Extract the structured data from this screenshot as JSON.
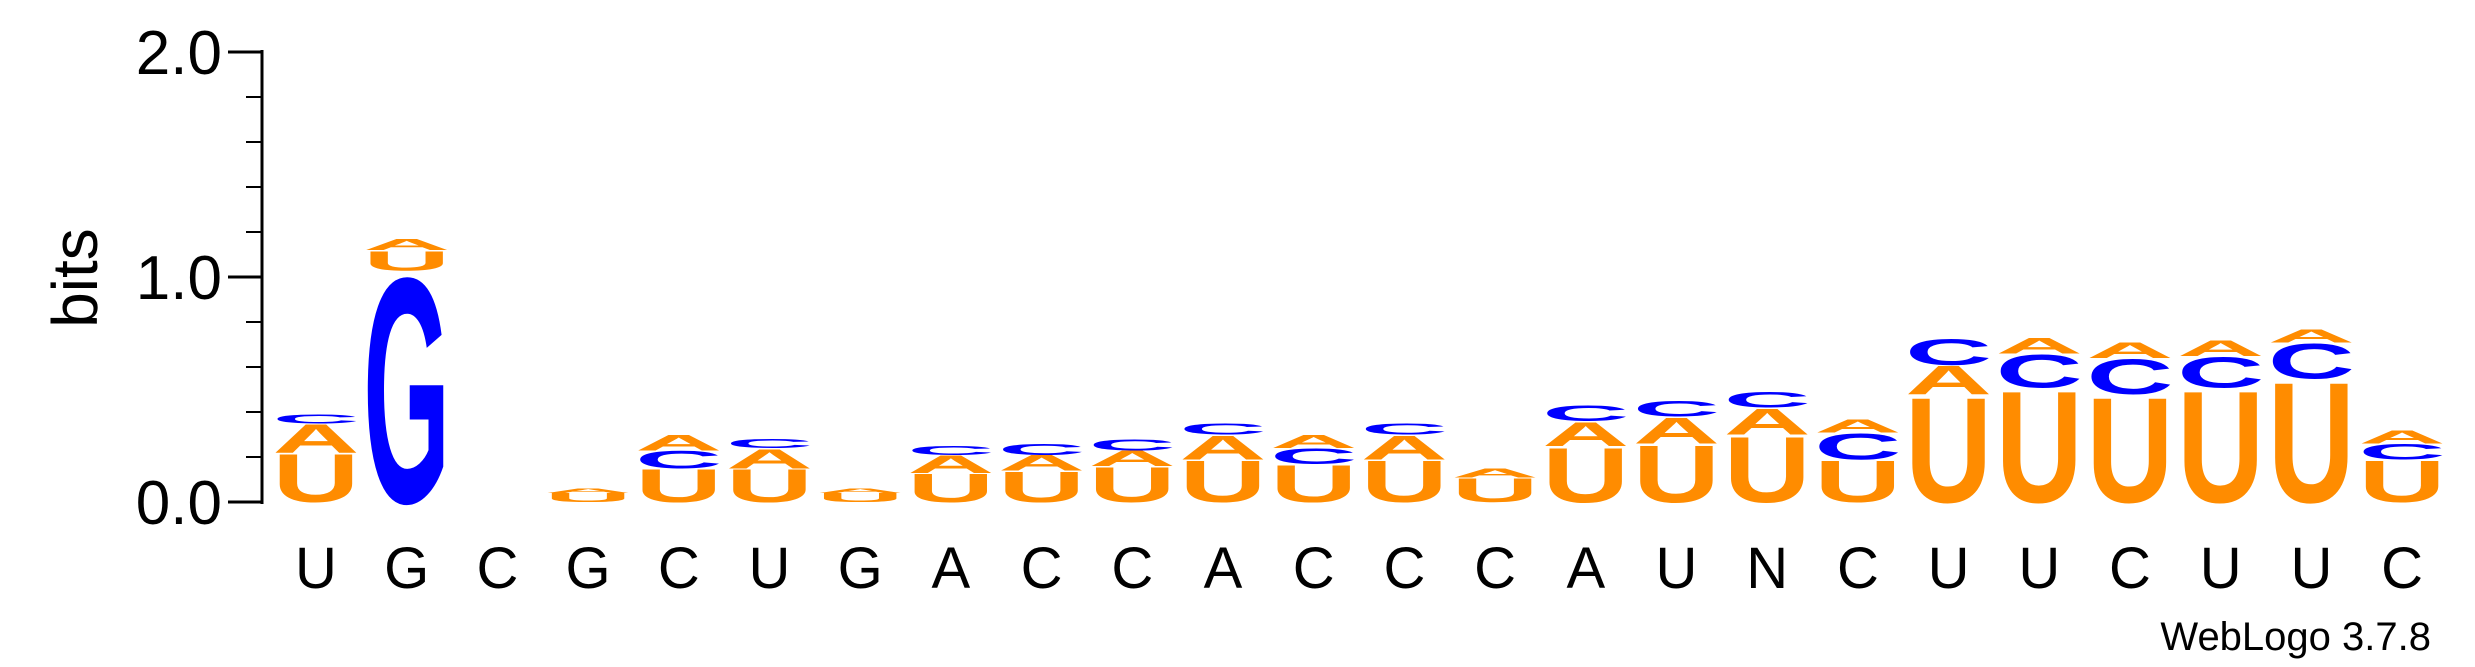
{
  "chart_data": {
    "type": "sequence-logo",
    "ylabel": "bits",
    "ylim": [
      0,
      2.0
    ],
    "yticks": [
      "0.0",
      "1.0",
      "2.0"
    ],
    "minor_ticks_per_interval": 4,
    "x_labels": [
      "U",
      "G",
      "C",
      "G",
      "C",
      "U",
      "G",
      "A",
      "C",
      "C",
      "A",
      "C",
      "C",
      "C",
      "A",
      "U",
      "N",
      "C",
      "U",
      "U",
      "C",
      "U",
      "U",
      "C"
    ],
    "colors": {
      "U": "#ff8c00",
      "A": "#ff8c00",
      "C": "#0000ff",
      "G": "#0000ff"
    },
    "columns": [
      [
        [
          "U",
          0.22
        ],
        [
          "A",
          0.13
        ],
        [
          "C",
          0.04
        ]
      ],
      [
        [
          "G",
          1.03
        ],
        [
          "U",
          0.09
        ],
        [
          "A",
          0.05
        ]
      ],
      [],
      [
        [
          "U",
          0.04
        ],
        [
          "A",
          0.02
        ]
      ],
      [
        [
          "U",
          0.15
        ],
        [
          "C",
          0.08
        ],
        [
          "A",
          0.07
        ]
      ],
      [
        [
          "U",
          0.15
        ],
        [
          "A",
          0.09
        ],
        [
          "C",
          0.04
        ]
      ],
      [
        [
          "U",
          0.04
        ],
        [
          "A",
          0.02
        ]
      ],
      [
        [
          "U",
          0.13
        ],
        [
          "A",
          0.08
        ],
        [
          "C",
          0.04
        ]
      ],
      [
        [
          "U",
          0.14
        ],
        [
          "A",
          0.07
        ],
        [
          "C",
          0.05
        ]
      ],
      [
        [
          "U",
          0.16
        ],
        [
          "A",
          0.07
        ],
        [
          "C",
          0.05
        ]
      ],
      [
        [
          "U",
          0.19
        ],
        [
          "A",
          0.11
        ],
        [
          "C",
          0.05
        ]
      ],
      [
        [
          "U",
          0.17
        ],
        [
          "C",
          0.07
        ],
        [
          "A",
          0.06
        ]
      ],
      [
        [
          "U",
          0.19
        ],
        [
          "A",
          0.11
        ],
        [
          "C",
          0.05
        ]
      ],
      [
        [
          "U",
          0.11
        ],
        [
          "A",
          0.04
        ]
      ],
      [
        [
          "U",
          0.25
        ],
        [
          "A",
          0.11
        ],
        [
          "C",
          0.07
        ]
      ],
      [
        [
          "U",
          0.26
        ],
        [
          "A",
          0.12
        ],
        [
          "C",
          0.07
        ]
      ],
      [
        [
          "U",
          0.3
        ],
        [
          "A",
          0.12
        ],
        [
          "C",
          0.07
        ]
      ],
      [
        [
          "U",
          0.19
        ],
        [
          "C",
          0.12
        ],
        [
          "A",
          0.06
        ]
      ],
      [
        [
          "U",
          0.48
        ],
        [
          "A",
          0.13
        ],
        [
          "C",
          0.12
        ]
      ],
      [
        [
          "U",
          0.51
        ],
        [
          "C",
          0.15
        ],
        [
          "A",
          0.07
        ]
      ],
      [
        [
          "U",
          0.48
        ],
        [
          "C",
          0.16
        ],
        [
          "A",
          0.07
        ]
      ],
      [
        [
          "U",
          0.51
        ],
        [
          "C",
          0.14
        ],
        [
          "A",
          0.07
        ]
      ],
      [
        [
          "U",
          0.55
        ],
        [
          "C",
          0.16
        ],
        [
          "A",
          0.06
        ]
      ],
      [
        [
          "U",
          0.19
        ],
        [
          "C",
          0.07
        ],
        [
          "A",
          0.06
        ]
      ]
    ]
  },
  "footer": {
    "credit": "WebLogo 3.7.8"
  }
}
